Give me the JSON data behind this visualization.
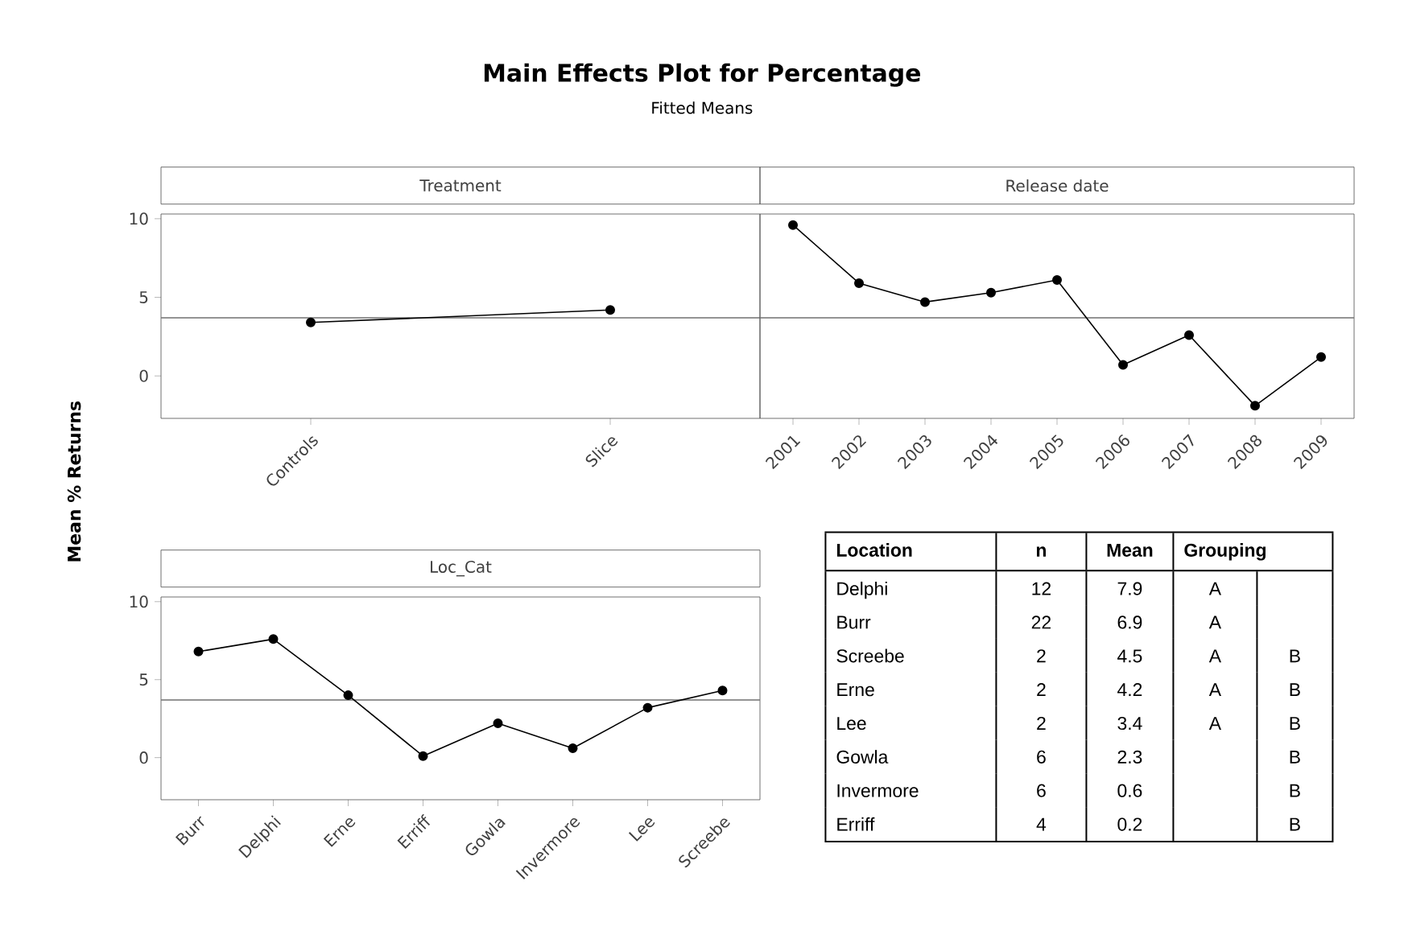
{
  "chart_data": [
    {
      "type": "line",
      "title": "Treatment",
      "ylabel": "Mean % Returns",
      "annotations": [
        "Main Effects Plot for Percentage",
        "Fitted Means"
      ],
      "categories": [
        "Controls",
        "Slice"
      ],
      "values": [
        3.4,
        4.2
      ],
      "color": "#000000",
      "marker": "circle",
      "line_style": "solid",
      "ylim": [
        -2.7,
        10.3
      ],
      "yticks": [
        0,
        5,
        10
      ],
      "ref_lines": [
        {
          "axis": "y",
          "value": 3.7,
          "color": "#707070"
        }
      ]
    },
    {
      "type": "line",
      "title": "Release date",
      "categories": [
        "2001",
        "2002",
        "2003",
        "2004",
        "2005",
        "2006",
        "2007",
        "2008",
        "2009"
      ],
      "values": [
        9.6,
        5.9,
        4.7,
        5.3,
        6.1,
        0.7,
        2.6,
        -1.9,
        1.2
      ],
      "color": "#000000",
      "marker": "circle",
      "line_style": "solid",
      "ylim": [
        -2.7,
        10.3
      ],
      "yticks": [
        0,
        5,
        10
      ],
      "tick_labels": "x",
      "ref_lines": [
        {
          "axis": "y",
          "value": 3.7,
          "color": "#707070"
        }
      ]
    },
    {
      "type": "line",
      "title": "Loc_Cat",
      "categories": [
        "Burr",
        "Delphi",
        "Erne",
        "Erriff",
        "Gowla",
        "Invermore",
        "Lee",
        "Screebe"
      ],
      "values": [
        6.8,
        7.6,
        4.0,
        0.1,
        2.2,
        0.6,
        3.2,
        4.3
      ],
      "color": "#000000",
      "marker": "circle",
      "line_style": "solid",
      "ylim": [
        -2.7,
        10.3
      ],
      "yticks": [
        0,
        5,
        10
      ],
      "ref_lines": [
        {
          "axis": "y",
          "value": 3.7,
          "color": "#707070"
        }
      ]
    },
    {
      "type": "other",
      "categories": [
        "Location",
        "n",
        "Mean",
        "Grouping",
        null
      ],
      "cell_labels": [
        [
          "Delphi",
          "12",
          "7.9",
          "A",
          null
        ],
        [
          "Burr",
          "22",
          "6.9",
          "A",
          null
        ],
        [
          "Screebe",
          "2",
          "4.5",
          "A",
          "B"
        ],
        [
          "Erne",
          "2",
          "4.2",
          "A",
          "B"
        ],
        [
          "Lee",
          "2",
          "3.4",
          "A",
          "B"
        ],
        [
          "Gowla",
          "6",
          "2.3",
          null,
          "B"
        ],
        [
          "Invermore",
          "6",
          "0.6",
          null,
          "B"
        ],
        [
          "Erriff",
          "4",
          "0.2",
          null,
          "B"
        ]
      ]
    }
  ]
}
